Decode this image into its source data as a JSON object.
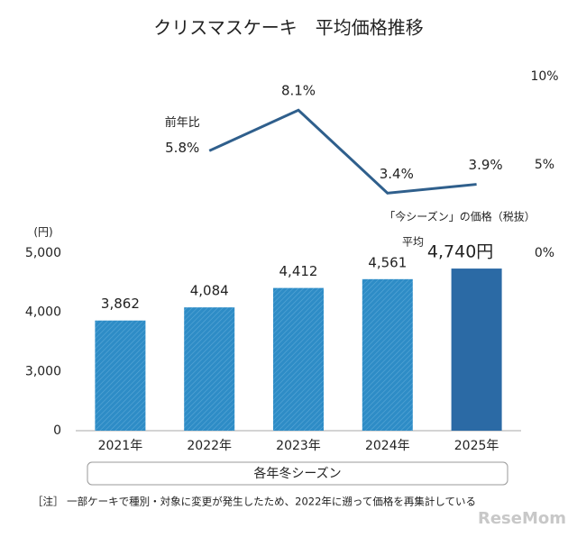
{
  "chart_data": {
    "type": "bar",
    "title": "クリスマスケーキ　平均価格推移",
    "y_unit_label": "(円)",
    "x_label": "各年冬シーズン",
    "categories": [
      "2021年",
      "2022年",
      "2023年",
      "2024年",
      "2025年"
    ],
    "values": [
      3862,
      4084,
      4412,
      4561,
      4740
    ],
    "value_labels": [
      "3,862",
      "4,084",
      "4,412",
      "4,561",
      "4,740円"
    ],
    "colors": [
      "#2e8cc6",
      "#2e8cc6",
      "#2e8cc6",
      "#2e8cc6",
      "#2b6aa5"
    ],
    "hatch": [
      true,
      true,
      true,
      true,
      false
    ],
    "ylim": [
      0,
      5000
    ],
    "ybreak": [
      0,
      2000
    ],
    "yticks": [
      0,
      {
        "value": 3000,
        "label": "3,000"
      },
      {
        "value": 4000,
        "label": "4,000"
      },
      {
        "value": 5000,
        "label": "5,000"
      }
    ],
    "y2lim": [
      0,
      10
    ],
    "y2ticks": [
      {
        "value": 0,
        "label": "0%"
      },
      {
        "value": 5,
        "label": "5%"
      },
      {
        "value": 10,
        "label": "10%"
      }
    ],
    "series": [
      {
        "name": "前年比",
        "type": "line",
        "axis": "y2",
        "color": "#2f5f8c",
        "values": [
          null,
          5.8,
          8.1,
          3.4,
          3.9
        ],
        "value_labels": [
          null,
          "5.8%",
          "8.1%",
          "3.4%",
          "3.9%"
        ]
      }
    ],
    "current_note": "「今シーズン」の価格（税抜）",
    "current_prefix": "平均",
    "note": "［注］ 一部ケーキで種別・対象に変更が発生したため、2022年に遡って価格を再集計している",
    "watermark": "ReseMom"
  }
}
